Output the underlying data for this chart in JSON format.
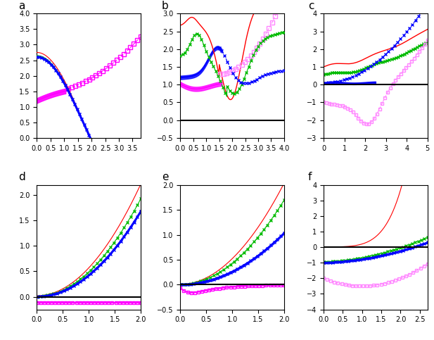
{
  "panels": {
    "a": {
      "xlim": [
        0,
        3.8
      ],
      "ylim": [
        0,
        4
      ],
      "xticks": [
        0,
        0.5,
        1,
        1.5,
        2,
        2.5,
        3,
        3.5
      ],
      "yticks": [
        0,
        0.5,
        1,
        1.5,
        2,
        2.5,
        3,
        3.5,
        4
      ]
    },
    "b": {
      "xlim": [
        0,
        4
      ],
      "ylim": [
        -0.5,
        3
      ],
      "xticks": [
        0,
        0.5,
        1,
        1.5,
        2,
        2.5,
        3,
        3.5,
        4
      ],
      "yticks": [
        -0.5,
        0,
        0.5,
        1,
        1.5,
        2,
        2.5,
        3
      ]
    },
    "c": {
      "xlim": [
        0,
        5
      ],
      "ylim": [
        -3,
        4
      ],
      "xticks": [
        0,
        1,
        2,
        3,
        4,
        5
      ],
      "yticks": [
        -3,
        -2,
        -1,
        0,
        1,
        2,
        3,
        4
      ]
    },
    "d": {
      "xlim": [
        0,
        2
      ],
      "ylim": [
        -0.25,
        2.2
      ],
      "xticks": [
        0,
        0.5,
        1,
        1.5,
        2
      ],
      "yticks": [
        0,
        0.5,
        1,
        1.5,
        2
      ]
    },
    "e": {
      "xlim": [
        0,
        2
      ],
      "ylim": [
        -0.5,
        2
      ],
      "xticks": [
        0,
        0.5,
        1,
        1.5,
        2
      ],
      "yticks": [
        -0.5,
        0,
        0.5,
        1,
        1.5,
        2
      ]
    },
    "f": {
      "xlim": [
        0,
        2.7
      ],
      "ylim": [
        -4,
        4
      ],
      "xticks": [
        0,
        0.5,
        1,
        1.5,
        2,
        2.5
      ],
      "yticks": [
        -4,
        -3,
        -2,
        -1,
        0,
        1,
        2,
        3,
        4
      ]
    }
  },
  "colors": {
    "red": "#ff0000",
    "green": "#00bb00",
    "blue": "#0000ff",
    "magenta": "#ff00ff",
    "mag_light": "#ff88ff"
  }
}
